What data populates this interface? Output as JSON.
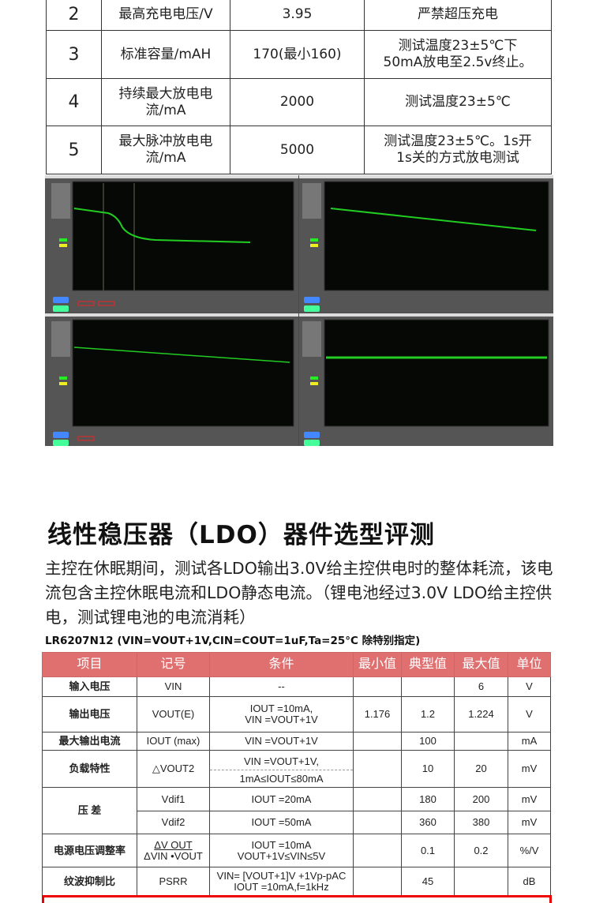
{
  "battery_table": {
    "rows": [
      {
        "no": "2",
        "item": "最高充电电压/V",
        "value": "3.95",
        "note": "严禁超压充电"
      },
      {
        "no": "3",
        "item": "标准容量/mAH",
        "value": "170(最小160)",
        "note": "测试温度23±5℃下50mA放电至2.5v终止。"
      },
      {
        "no": "4",
        "item": "持续最大放电电流/mA",
        "value": "2000",
        "note": "测试温度23±5℃"
      },
      {
        "no": "5",
        "item": "最大脉冲放电电流/mA",
        "value": "5000",
        "note": "测试温度23±5℃。1s开1s关的方式放电测试"
      }
    ]
  },
  "scope_screens": {
    "trace_color": "#22cc22",
    "background": "#4a4a4a"
  },
  "section": {
    "title": "线性稳压器（LDO）器件选型评测",
    "paragraph": "主控在休眠期间，测试各LDO输出3.0V给主控供电时的整体耗流，该电流包含主控休眠电流和LDO静态电流。（锂电池经过3.0V LDO给主控供电，测试锂电池的电流消耗）",
    "subtitle": "LR6207N12 (VIN=VOUT+1V,CIN=COUT=1uF,Ta=25°C 除特别指定)"
  },
  "ldo_table": {
    "header_color": "#e07070",
    "headers": [
      "项目",
      "记号",
      "条件",
      "最小值",
      "典型值",
      "最大值",
      "单位"
    ],
    "r1": [
      "输入电压",
      "VIN",
      "--",
      "",
      "",
      "6",
      "V"
    ],
    "r2": [
      "输出电压",
      "VOUT(E)",
      "IOUT =10mA,",
      "VIN =VOUT+1V",
      "1.176",
      "1.2",
      "1.224",
      "V"
    ],
    "r3": [
      "最大输出电流",
      "IOUT (max)",
      "VIN =VOUT+1V",
      "",
      "100",
      "",
      "mA"
    ],
    "r4": [
      "负载特性",
      "△VOUT2",
      "VIN =VOUT+1V,",
      "1mA≤IOUT≤80mA",
      "",
      "10",
      "20",
      "mV"
    ],
    "r5": [
      "压 差",
      "Vdif1",
      "IOUT =20mA",
      "",
      "180",
      "200",
      "mV"
    ],
    "r6": [
      "Vdif2",
      "IOUT =50mA",
      "",
      "360",
      "380",
      "mV"
    ],
    "r7": [
      "电源电压调整率",
      "ΔV OUT",
      "ΔVIN •VOUT",
      "IOUT =10mA",
      "VOUT+1V≤VIN≤5V",
      "",
      "0.1",
      "0.2",
      "%/V"
    ],
    "r8": [
      "纹波抑制比",
      "PSRR",
      "VIN= [VOUT+1]V +1Vp-pAC",
      "IOUT =10mA,f=1kHz",
      "",
      "45",
      "",
      "dB"
    ]
  }
}
